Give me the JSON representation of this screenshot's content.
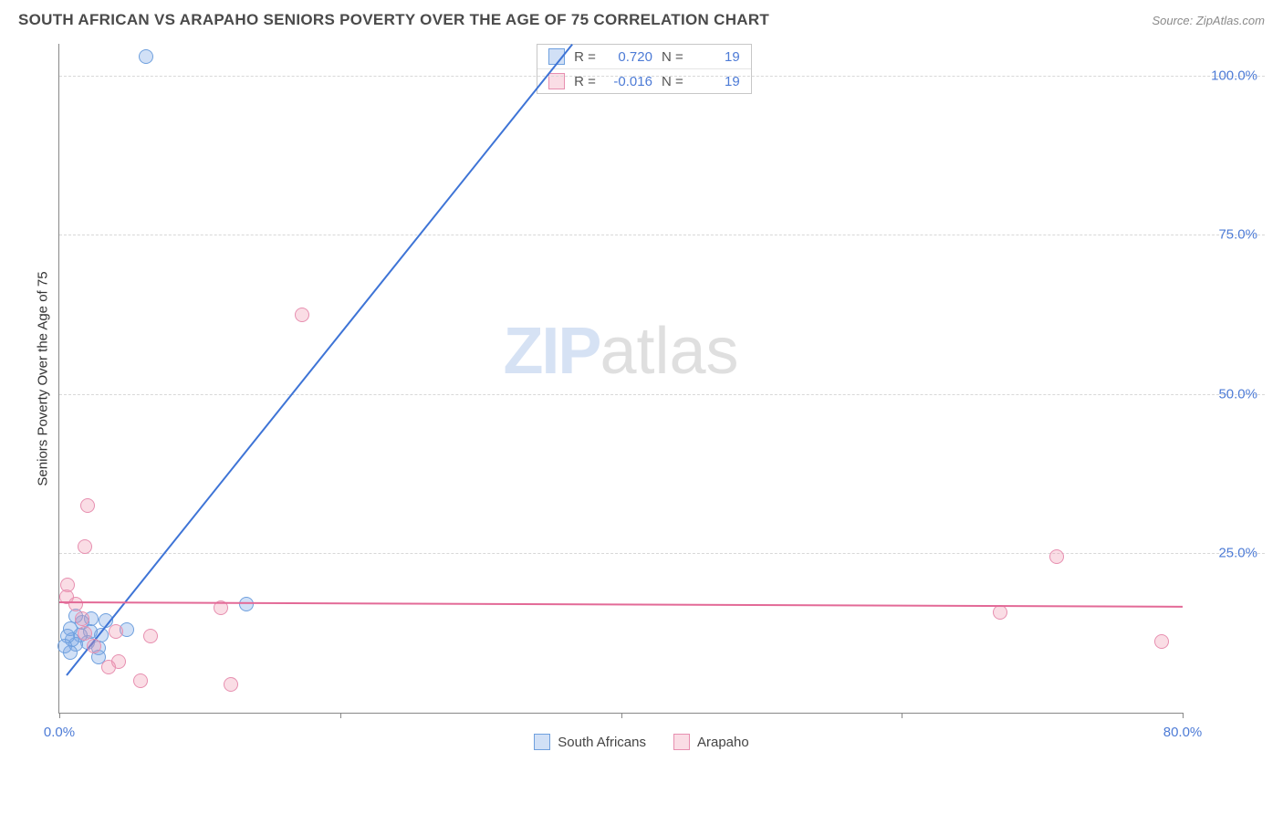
{
  "header": {
    "title": "SOUTH AFRICAN VS ARAPAHO SENIORS POVERTY OVER THE AGE OF 75 CORRELATION CHART",
    "source_prefix": "Source: ",
    "source_name": "ZipAtlas.com"
  },
  "chart": {
    "type": "scatter",
    "y_axis_title": "Seniors Poverty Over the Age of 75",
    "xlim": [
      0,
      80
    ],
    "ylim": [
      0,
      105
    ],
    "y_ticks": [
      {
        "v": 25,
        "label": "25.0%"
      },
      {
        "v": 50,
        "label": "50.0%"
      },
      {
        "v": 75,
        "label": "75.0%"
      },
      {
        "v": 100,
        "label": "100.0%"
      }
    ],
    "x_ticks_major": [
      0,
      20,
      40,
      60,
      80
    ],
    "x_labels": [
      {
        "v": 0,
        "label": "0.0%"
      },
      {
        "v": 80,
        "label": "80.0%"
      }
    ],
    "grid_color": "#d8d8d8",
    "axis_color": "#888888",
    "tick_label_color": "#4d7bd6",
    "background_color": "#ffffff",
    "series": [
      {
        "name": "South Africans",
        "marker_fill": "rgba(122,167,230,0.35)",
        "marker_stroke": "#6fa0de",
        "marker_radius": 8,
        "trend_color": "#3e74d6",
        "trend_start": {
          "x": 0.5,
          "y": 6
        },
        "trend_end": {
          "x": 36.5,
          "y": 105
        },
        "R": "0.720",
        "N": "19",
        "points": [
          {
            "x": 6.2,
            "y": 103
          },
          {
            "x": 13.3,
            "y": 17.0
          },
          {
            "x": 4.8,
            "y": 13.0
          },
          {
            "x": 3.3,
            "y": 14.5
          },
          {
            "x": 3.0,
            "y": 12.2
          },
          {
            "x": 2.8,
            "y": 10.2
          },
          {
            "x": 2.8,
            "y": 8.8
          },
          {
            "x": 2.2,
            "y": 12.8
          },
          {
            "x": 2.3,
            "y": 14.8
          },
          {
            "x": 2.0,
            "y": 11.0
          },
          {
            "x": 1.6,
            "y": 14.2
          },
          {
            "x": 1.5,
            "y": 12.2
          },
          {
            "x": 1.2,
            "y": 10.8
          },
          {
            "x": 1.2,
            "y": 15.2
          },
          {
            "x": 0.9,
            "y": 11.5
          },
          {
            "x": 0.8,
            "y": 13.2
          },
          {
            "x": 0.8,
            "y": 9.5
          },
          {
            "x": 0.6,
            "y": 12.0
          },
          {
            "x": 0.4,
            "y": 10.5
          }
        ]
      },
      {
        "name": "Arapaho",
        "marker_fill": "rgba(240,150,175,0.32)",
        "marker_stroke": "#e78fb0",
        "marker_radius": 8,
        "trend_color": "#e36a97",
        "trend_start": {
          "x": 0,
          "y": 17.5
        },
        "trend_end": {
          "x": 80,
          "y": 16.8
        },
        "R": "-0.016",
        "N": "19",
        "points": [
          {
            "x": 17.3,
            "y": 62.5
          },
          {
            "x": 2.0,
            "y": 32.5
          },
          {
            "x": 1.8,
            "y": 26.0
          },
          {
            "x": 71.0,
            "y": 24.5
          },
          {
            "x": 0.6,
            "y": 20.0
          },
          {
            "x": 0.5,
            "y": 18.2
          },
          {
            "x": 11.5,
            "y": 16.5
          },
          {
            "x": 67.0,
            "y": 15.8
          },
          {
            "x": 1.2,
            "y": 17.0
          },
          {
            "x": 1.6,
            "y": 14.8
          },
          {
            "x": 6.5,
            "y": 12.0
          },
          {
            "x": 78.5,
            "y": 11.2
          },
          {
            "x": 4.0,
            "y": 12.8
          },
          {
            "x": 2.5,
            "y": 10.5
          },
          {
            "x": 4.2,
            "y": 8.0
          },
          {
            "x": 3.5,
            "y": 7.2
          },
          {
            "x": 5.8,
            "y": 5.0
          },
          {
            "x": 12.2,
            "y": 4.5
          },
          {
            "x": 1.8,
            "y": 12.5
          }
        ]
      }
    ],
    "stats_labels": {
      "R": "R =",
      "N": "N ="
    },
    "watermark": {
      "zip": "ZIP",
      "atlas": "atlas"
    }
  },
  "legend": {
    "items": [
      {
        "key": 0,
        "label": "South Africans"
      },
      {
        "key": 1,
        "label": "Arapaho"
      }
    ]
  }
}
